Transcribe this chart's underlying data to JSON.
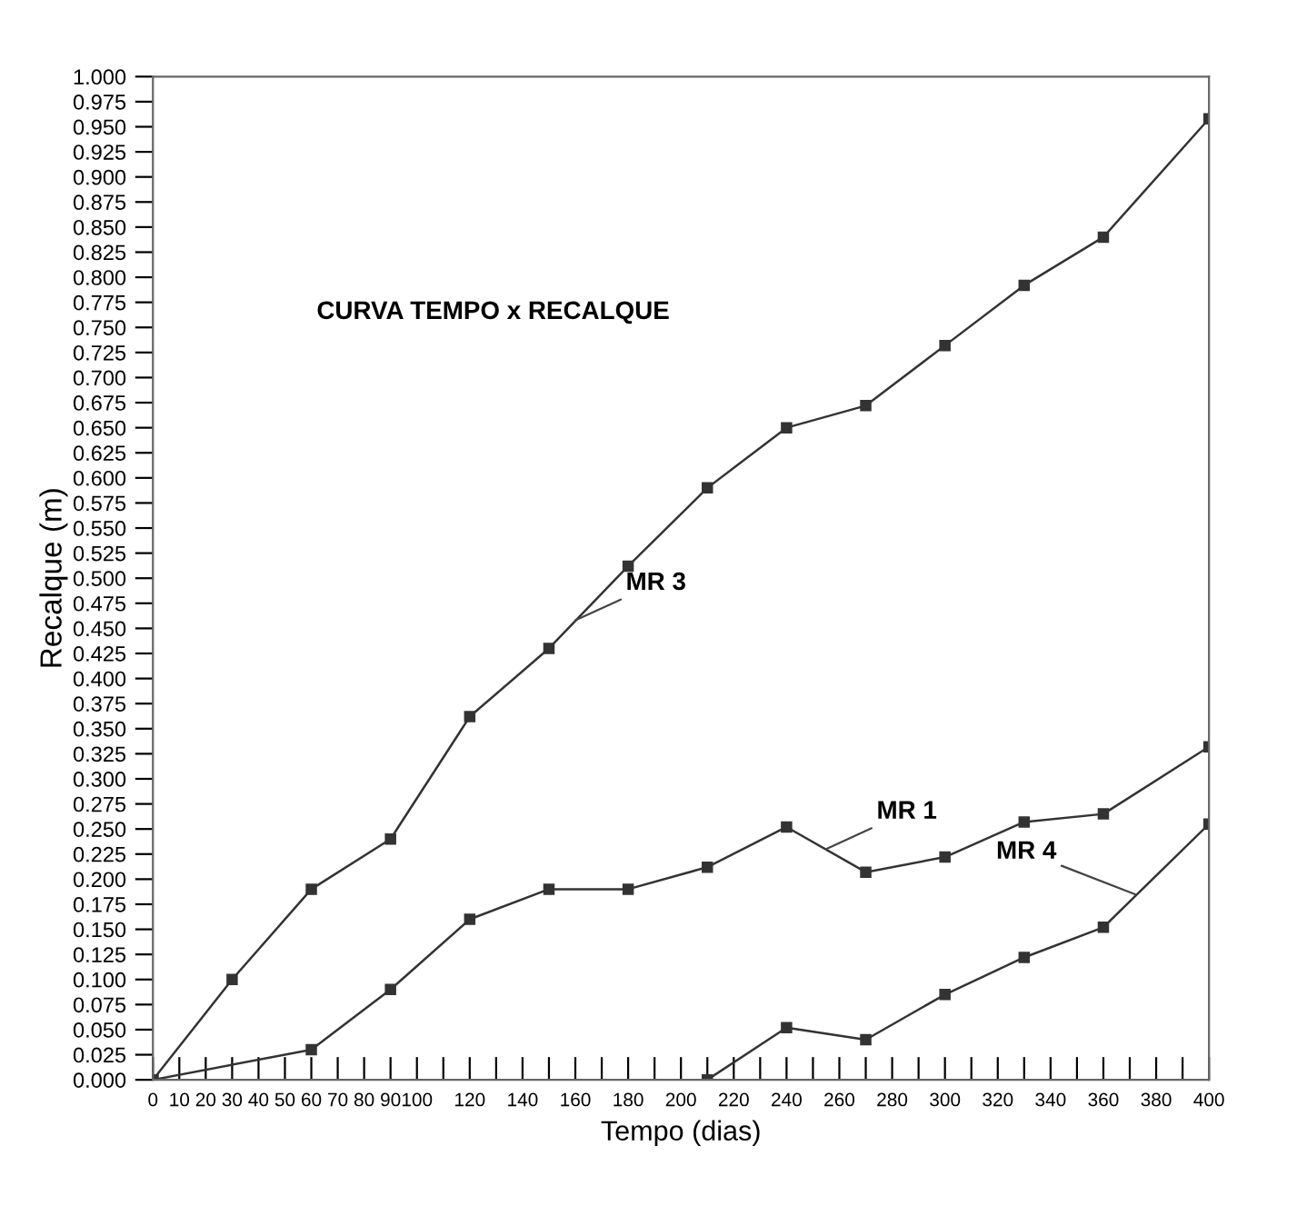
{
  "chart_data": {
    "type": "line",
    "title": "CURVA TEMPO x RECALQUE",
    "xlabel": "Tempo (dias)",
    "ylabel": "Recalque (m)",
    "series": [
      {
        "color": "#333333",
        "x": [
          0,
          30,
          60,
          90,
          120,
          150,
          180,
          210,
          240,
          270,
          300,
          330,
          360,
          400
        ],
        "values": [
          0,
          0.1,
          0.19,
          0.24,
          0.362,
          0.43,
          0.512,
          0.59,
          0.65,
          0.672,
          0.732,
          0.792,
          0.84,
          0.958
        ]
      },
      {
        "color": "#333333",
        "x": [
          0,
          60,
          90,
          120,
          150,
          180,
          210,
          240,
          270,
          300,
          330,
          360,
          400
        ],
        "values": [
          0,
          0.03,
          0.09,
          0.16,
          0.19,
          0.19,
          0.212,
          0.252,
          0.207,
          0.222,
          0.257,
          0.265,
          0.332
        ]
      },
      {
        "color": "#333333",
        "x": [
          210,
          240,
          270,
          300,
          330,
          360,
          400
        ],
        "values": [
          0,
          0.052,
          0.04,
          0.085,
          0.122,
          0.152,
          0.255
        ]
      }
    ],
    "annotations": [
      {
        "text": "MR 3",
        "x": 160,
        "y": 0.458
      },
      {
        "text": "MR 1",
        "x": 255,
        "y": 0.23
      },
      {
        "text": "MR 4",
        "x": 372,
        "y": 0.185
      }
    ],
    "marker": "square",
    "line_style": "solid",
    "grid": false,
    "legend": false,
    "xlim": [
      0,
      400
    ],
    "ylim": [
      0,
      1
    ],
    "xticks": [
      0,
      10,
      20,
      30,
      40,
      50,
      60,
      70,
      80,
      90,
      100,
      {
        "value": 110,
        "label": null
      },
      120,
      {
        "value": 130,
        "label": null
      },
      140,
      {
        "value": 150,
        "label": null
      },
      160,
      {
        "value": 170,
        "label": null
      },
      180,
      {
        "value": 190,
        "label": null
      },
      200,
      {
        "value": 210,
        "label": null
      },
      220,
      {
        "value": 230,
        "label": null
      },
      240,
      {
        "value": 250,
        "label": null
      },
      260,
      {
        "value": 270,
        "label": null
      },
      280,
      {
        "value": 290,
        "label": null
      },
      300,
      {
        "value": 310,
        "label": null
      },
      320,
      {
        "value": 330,
        "label": null
      },
      340,
      {
        "value": 350,
        "label": null
      },
      360,
      {
        "value": 370,
        "label": null
      },
      380,
      {
        "value": 390,
        "label": null
      },
      400
    ],
    "yticks": [
      {
        "value": 0,
        "label": "0.000"
      },
      {
        "value": 0.025,
        "label": "0.025"
      },
      {
        "value": 0.05,
        "label": "0.050"
      },
      {
        "value": 0.075,
        "label": "0.075"
      },
      {
        "value": 0.1,
        "label": "0.100"
      },
      {
        "value": 0.125,
        "label": "0.125"
      },
      {
        "value": 0.15,
        "label": "0.150"
      },
      {
        "value": 0.175,
        "label": "0.175"
      },
      {
        "value": 0.2,
        "label": "0.200"
      },
      {
        "value": 0.225,
        "label": "0.225"
      },
      {
        "value": 0.25,
        "label": "0.250"
      },
      {
        "value": 0.275,
        "label": "0.275"
      },
      {
        "value": 0.3,
        "label": "0.300"
      },
      {
        "value": 0.325,
        "label": "0.325"
      },
      {
        "value": 0.35,
        "label": "0.350"
      },
      {
        "value": 0.375,
        "label": "0.375"
      },
      {
        "value": 0.4,
        "label": "0.400"
      },
      {
        "value": 0.425,
        "label": "0.425"
      },
      {
        "value": 0.45,
        "label": "0.450"
      },
      {
        "value": 0.475,
        "label": "0.475"
      },
      {
        "value": 0.5,
        "label": "0.500"
      },
      {
        "value": 0.525,
        "label": "0.525"
      },
      {
        "value": 0.55,
        "label": "0.550"
      },
      {
        "value": 0.575,
        "label": "0.575"
      },
      {
        "value": 0.6,
        "label": "0.600"
      },
      {
        "value": 0.625,
        "label": "0.625"
      },
      {
        "value": 0.65,
        "label": "0.650"
      },
      {
        "value": 0.675,
        "label": "0.675"
      },
      {
        "value": 0.7,
        "label": "0.700"
      },
      {
        "value": 0.725,
        "label": "0.725"
      },
      {
        "value": 0.75,
        "label": "0.750"
      },
      {
        "value": 0.775,
        "label": "0.775"
      },
      {
        "value": 0.8,
        "label": "0.800"
      },
      {
        "value": 0.825,
        "label": "0.825"
      },
      {
        "value": 0.85,
        "label": "0.850"
      },
      {
        "value": 0.875,
        "label": "0.875"
      },
      {
        "value": 0.9,
        "label": "0.900"
      },
      {
        "value": 0.925,
        "label": "0.925"
      },
      {
        "value": 0.95,
        "label": "0.950"
      },
      {
        "value": 0.975,
        "label": "0.975"
      },
      {
        "value": 1,
        "label": "1.000"
      }
    ]
  }
}
